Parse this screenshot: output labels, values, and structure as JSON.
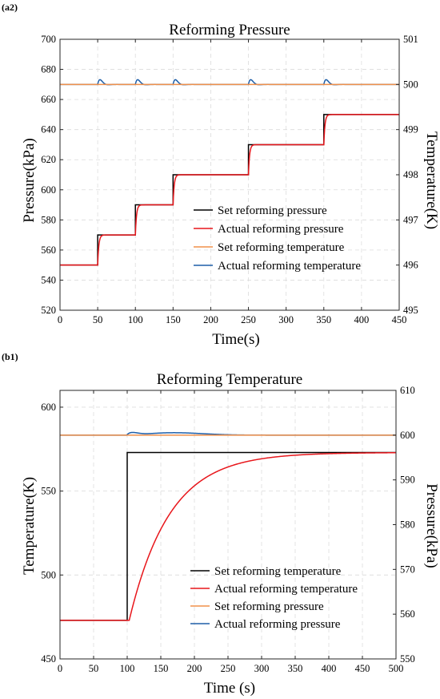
{
  "chart_data": [
    {
      "type": "line",
      "panel_tag": "(a2)",
      "title": "Reforming Pressure",
      "xlabel": "Time(s)",
      "ylabel_left": "Pressure(kPa)",
      "ylabel_right": "Temperature(K)",
      "xlim": [
        0,
        450
      ],
      "ylim_left": [
        520,
        700
      ],
      "ylim_right": [
        495,
        501
      ],
      "x_ticks": [
        0,
        50,
        100,
        150,
        200,
        250,
        300,
        350,
        400,
        450
      ],
      "y_ticks_left": [
        520,
        540,
        560,
        580,
        600,
        620,
        640,
        660,
        680,
        700
      ],
      "y_ticks_right": [
        495,
        496,
        497,
        498,
        499,
        500,
        501
      ],
      "grid": true,
      "legend_position": "center-right",
      "series": [
        {
          "name": "Set reforming pressure",
          "axis": "left",
          "color": "#000000",
          "shape": "step",
          "x": [
            0,
            50,
            50,
            100,
            100,
            150,
            150,
            250,
            250,
            350,
            350,
            450
          ],
          "y": [
            550,
            550,
            570,
            570,
            590,
            590,
            610,
            610,
            630,
            630,
            650,
            650
          ]
        },
        {
          "name": "Actual reforming pressure",
          "axis": "left",
          "color": "#e8161b",
          "shape": "first-order",
          "t0": 0,
          "y0": 550,
          "steps": [
            {
              "t": 50,
              "y": 570
            },
            {
              "t": 100,
              "y": 590
            },
            {
              "t": 150,
              "y": 610
            },
            {
              "t": 250,
              "y": 630
            },
            {
              "t": 350,
              "y": 650
            }
          ],
          "tau": 1.5
        },
        {
          "name": "Set reforming  temperature",
          "axis": "right",
          "color": "#f0904a",
          "shape": "constant",
          "value": 500
        },
        {
          "name": "Actual reforming temperature",
          "axis": "right",
          "color": "#1f5fa8",
          "shape": "disturbance",
          "base": 500,
          "events": [
            50,
            100,
            150,
            250,
            350
          ],
          "amplitude": 0.3
        }
      ]
    },
    {
      "type": "line",
      "panel_tag": "(b1)",
      "title": "Reforming Temperature",
      "xlabel": "Time (s)",
      "ylabel_left": "Temperature(K)",
      "ylabel_right": "Pressure(kPa)",
      "xlim": [
        0,
        500
      ],
      "ylim_left": [
        450,
        610
      ],
      "ylim_right": [
        550,
        610
      ],
      "x_ticks": [
        0,
        50,
        100,
        150,
        200,
        250,
        300,
        350,
        400,
        450,
        500
      ],
      "y_ticks_left": [
        450,
        500,
        550,
        600
      ],
      "y_ticks_right": [
        550,
        560,
        570,
        580,
        590,
        600,
        610
      ],
      "grid": true,
      "legend_position": "bottom-right",
      "series": [
        {
          "name": "Set reforming temperature",
          "axis": "left",
          "color": "#000000",
          "shape": "step",
          "x": [
            0,
            100,
            100,
            500
          ],
          "y": [
            473,
            473,
            573,
            573
          ]
        },
        {
          "name": "Actual reforming temperature",
          "axis": "left",
          "color": "#e8161b",
          "shape": "first-order",
          "t0": 0,
          "y0": 473,
          "steps": [
            {
              "t": 100,
              "y": 573
            }
          ],
          "tau": 60,
          "delay": 3
        },
        {
          "name": "Set reforming pressure",
          "axis": "right",
          "color": "#f0904a",
          "shape": "constant",
          "value": 600
        },
        {
          "name": "Actual reforming pressure",
          "axis": "right",
          "color": "#1f5fa8",
          "shape": "disturbance",
          "base": 600,
          "events": [
            100
          ],
          "amplitude": 1.2
        }
      ]
    }
  ]
}
